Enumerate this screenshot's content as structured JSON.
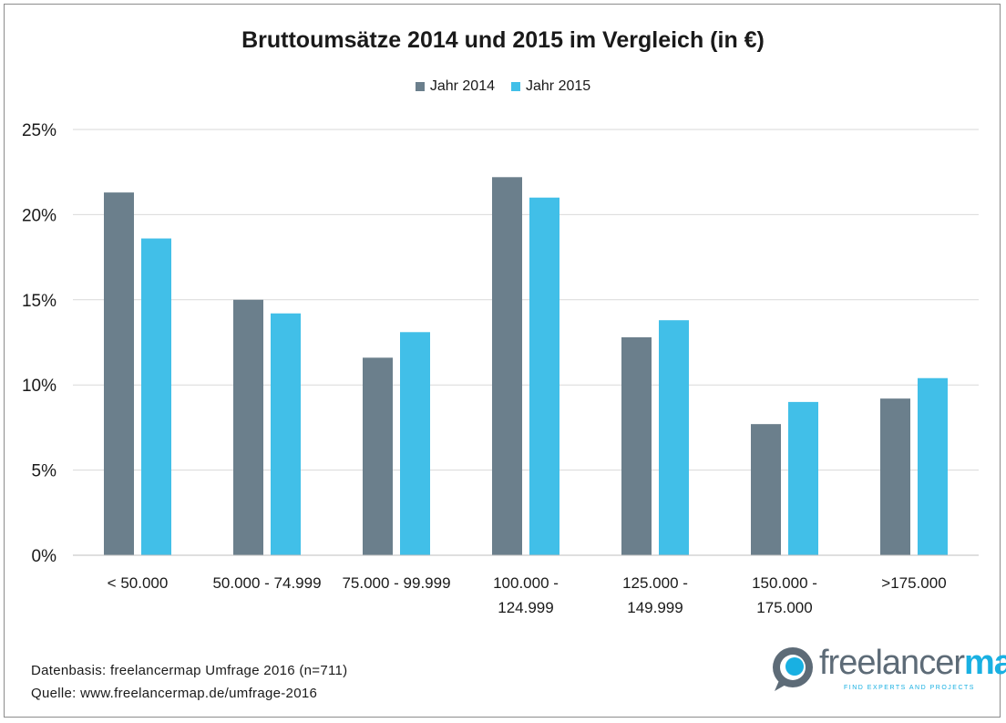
{
  "chart_data": {
    "type": "bar",
    "title": "Bruttoumsätze 2014 und 2015 im Vergleich (in €)",
    "categories": [
      [
        "< 50.000"
      ],
      [
        "50.000 - 74.999"
      ],
      [
        "75.000 - 99.999"
      ],
      [
        "100.000 -",
        "124.999"
      ],
      [
        "125.000 -",
        "149.999"
      ],
      [
        "150.000 -",
        "175.000"
      ],
      [
        ">175.000"
      ]
    ],
    "series": [
      {
        "name": "Jahr 2014",
        "color": "#6b7f8c",
        "values": [
          21.3,
          15.0,
          11.6,
          22.2,
          12.8,
          7.7,
          9.2
        ]
      },
      {
        "name": "Jahr 2015",
        "color": "#41bfe8",
        "values": [
          18.6,
          14.2,
          13.1,
          21.0,
          13.8,
          9.0,
          10.4
        ]
      }
    ],
    "ylim": [
      0,
      25
    ],
    "yticks": [
      "0%",
      "5%",
      "10%",
      "15%",
      "20%",
      "25%"
    ],
    "grid": true,
    "legend_position": "top"
  },
  "footer": {
    "line1": "Datenbasis: freelancermap Umfrage 2016 (n=711)",
    "line2": "Quelle: www.freelancermap.de/umfrage-2016"
  },
  "logo": {
    "text_a": "freelancer",
    "text_b": "map",
    "tagline": "FIND EXPERTS AND PROJECTS",
    "icon": "freelancermap-logo-icon"
  }
}
